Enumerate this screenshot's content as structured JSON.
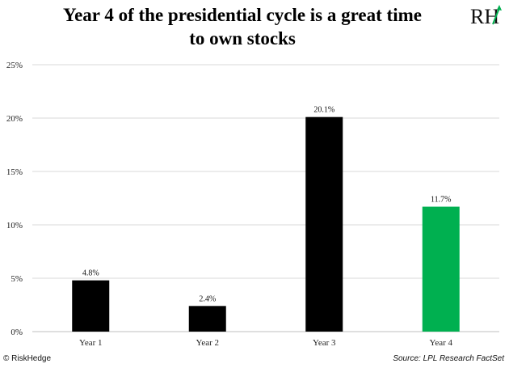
{
  "title_line1": "Year 4 of the presidential cycle is a great time",
  "title_line2": "to own stocks",
  "logo": {
    "text": "RH",
    "icon": "risk-hedge-logo"
  },
  "footer": {
    "copyright": "© RiskHedge",
    "source": "Source: LPL Research FactSet"
  },
  "colors": {
    "bar_default": "#000000",
    "bar_highlight": "#00b050",
    "grid": "#d9d9d9"
  },
  "chart_data": {
    "type": "bar",
    "title": "Year 4 of the presidential cycle is a great time to own stocks",
    "categories": [
      "Year 1",
      "Year 2",
      "Year 3",
      "Year 4"
    ],
    "values": [
      4.8,
      2.4,
      20.1,
      11.7
    ],
    "data_labels": [
      "4.8%",
      "2.4%",
      "20.1%",
      "11.7%"
    ],
    "bar_colors": [
      "#000000",
      "#000000",
      "#000000",
      "#00b050"
    ],
    "ylim": [
      0,
      25
    ],
    "yticks": [
      0,
      5,
      10,
      15,
      20,
      25
    ],
    "ytick_labels": [
      "0%",
      "5%",
      "10%",
      "15%",
      "20%",
      "25%"
    ],
    "xlabel": "",
    "ylabel": "",
    "grid": true,
    "legend": "none"
  }
}
